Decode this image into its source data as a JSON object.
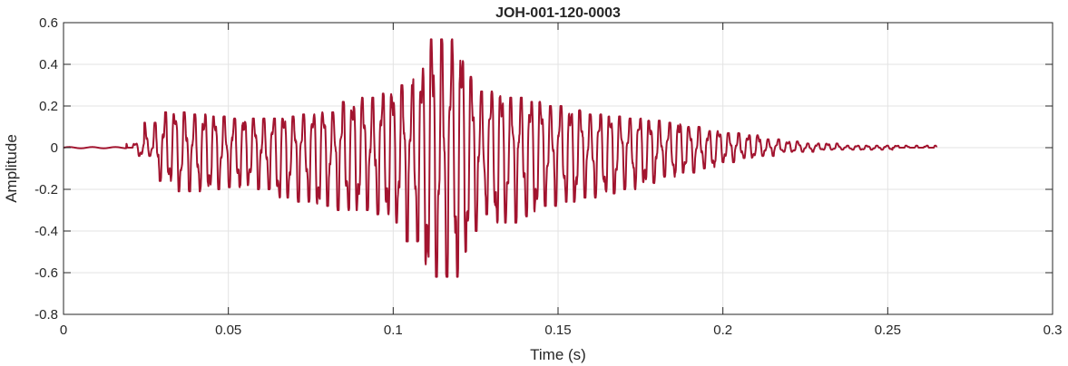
{
  "chart_data": {
    "type": "line",
    "title": "JOH-001-120-0003",
    "xlabel": "Time (s)",
    "ylabel": "Amplitude",
    "xlim": [
      0,
      0.3
    ],
    "ylim": [
      -0.8,
      0.6
    ],
    "xticks": [
      0,
      0.05,
      0.1,
      0.15,
      0.2,
      0.25,
      0.3
    ],
    "xtick_labels": [
      "0",
      "0.05",
      "0.1",
      "0.15",
      "0.2",
      "0.25",
      "0.3"
    ],
    "yticks": [
      -0.8,
      -0.6,
      -0.4,
      -0.2,
      0,
      0.2,
      0.4,
      0.6
    ],
    "ytick_labels": [
      "-0.8",
      "-0.6",
      "-0.4",
      "-0.2",
      "0",
      "0.2",
      "0.4",
      "0.6"
    ],
    "grid": true,
    "series": [
      {
        "color": "#A2142F",
        "x_start": 0,
        "x_end": 0.265,
        "x": [
          0,
          0.019,
          0.0225,
          0.026,
          0.0285,
          0.0315,
          0.0345,
          0.0375,
          0.0405,
          0.0435,
          0.0465,
          0.0495,
          0.0525,
          0.0555,
          0.0585,
          0.0615,
          0.0645,
          0.0675,
          0.0705,
          0.0735,
          0.0765,
          0.0795,
          0.0825,
          0.0855,
          0.0885,
          0.0915,
          0.0945,
          0.0975,
          0.1005,
          0.1035,
          0.106,
          0.108,
          0.11,
          0.112,
          0.114,
          0.116,
          0.118,
          0.12,
          0.122,
          0.124,
          0.126,
          0.128,
          0.1305,
          0.1335,
          0.1365,
          0.1395,
          0.1425,
          0.1455,
          0.1485,
          0.1515,
          0.1545,
          0.1575,
          0.1605,
          0.1635,
          0.1665,
          0.1695,
          0.1725,
          0.1755,
          0.1785,
          0.1815,
          0.1845,
          0.1875,
          0.1905,
          0.1935,
          0.1965,
          0.1995,
          0.2025,
          0.2055,
          0.2085,
          0.2115,
          0.2145,
          0.2175,
          0.2205,
          0.2235,
          0.2265,
          0.2295,
          0.2325,
          0.2355,
          0.2385,
          0.2415,
          0.2445,
          0.2475,
          0.2505,
          0.2535,
          0.2565,
          0.2595,
          0.2625,
          0.265
        ],
        "y": [
          0,
          0,
          0.02,
          -0.04,
          0.12,
          -0.16,
          0.17,
          -0.21,
          0.16,
          -0.2,
          0.15,
          -0.19,
          0.14,
          -0.18,
          0.14,
          -0.2,
          0.14,
          -0.24,
          0.15,
          -0.26,
          0.16,
          -0.28,
          0.17,
          -0.3,
          0.22,
          -0.3,
          0.24,
          -0.32,
          0.26,
          -0.36,
          0.3,
          -0.45,
          0.38,
          -0.6,
          0.52,
          -0.62,
          0.46,
          -0.5,
          0.34,
          -0.4,
          0.27,
          -0.32,
          0.26,
          -0.36,
          0.24,
          -0.33,
          0.22,
          -0.28,
          0.2,
          -0.26,
          0.18,
          -0.24,
          0.16,
          -0.22,
          0.15,
          -0.2,
          0.14,
          -0.17,
          0.13,
          -0.14,
          0.12,
          -0.12,
          0.1,
          -0.1,
          0.08,
          -0.07,
          0.07,
          -0.05,
          0.06,
          -0.04,
          0.04,
          -0.02,
          0.03,
          -0.02,
          0.02,
          -0.01,
          0.02,
          -0.01,
          0.01,
          -0.01,
          0.01,
          -0.01,
          0.01,
          0,
          0.01,
          0,
          0.01,
          0
        ]
      }
    ]
  }
}
